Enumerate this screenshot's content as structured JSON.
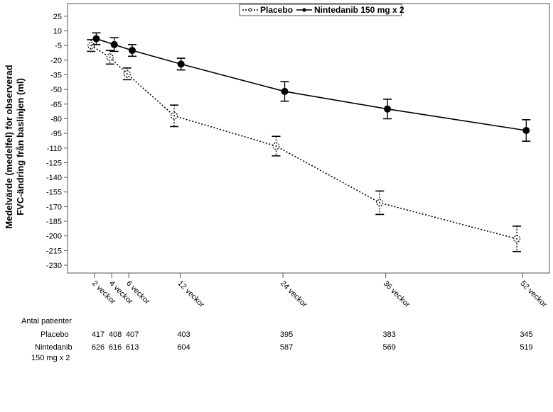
{
  "chart_data": {
    "type": "line",
    "ylabel_line1": "Medelvärde (medelfel) för observerad",
    "ylabel_line2": "FVC-ändring från baslinjen (ml)",
    "yticks": [
      25,
      10,
      -5,
      -20,
      -35,
      -50,
      -65,
      -80,
      -95,
      -110,
      -125,
      -140,
      -155,
      -170,
      -185,
      -200,
      -215,
      -230
    ],
    "ylim": [
      -238,
      38
    ],
    "x_weeks": [
      2,
      4,
      6,
      12,
      24,
      36,
      52
    ],
    "x_labels": [
      "2 veckor",
      "4 veckor",
      "6 veckor",
      "12 veckor",
      "24 veckor",
      "36 veckor",
      "52 veckor"
    ],
    "legend": {
      "placement": "top",
      "placebo": "Placebo",
      "nintedanib": "Nintedanib 150 mg x 2"
    },
    "series": [
      {
        "name": "Placebo",
        "key": "placebo",
        "style": "dotted",
        "marker": "open-circle",
        "x": [
          1.6,
          3.8,
          5.8,
          11.3,
          23.2,
          35.3,
          51.3
        ],
        "values": [
          -5,
          -17,
          -34,
          -77,
          -108,
          -166,
          -203
        ],
        "errors": [
          6,
          7,
          6,
          11,
          10,
          12,
          13
        ]
      },
      {
        "name": "Nintedanib 150 mg x 2",
        "key": "nintedanib",
        "style": "solid",
        "marker": "filled-circle",
        "x": [
          2.2,
          4.3,
          6.4,
          12.1,
          24.2,
          36.2,
          52.4
        ],
        "values": [
          2,
          -4,
          -10,
          -24,
          -52,
          -70,
          -92
        ],
        "errors": [
          6,
          7,
          6,
          6,
          10,
          10,
          11
        ]
      }
    ],
    "patients_table": {
      "header": "Antal patienter",
      "rows": [
        {
          "label": "Placebo",
          "values": [
            "417",
            "408",
            "407",
            "403",
            "395",
            "383",
            "345"
          ]
        },
        {
          "label_line1": "Nintedanib",
          "label_line2": "150 mg x 2",
          "values": [
            "626",
            "616",
            "613",
            "604",
            "587",
            "569",
            "519"
          ]
        }
      ]
    }
  }
}
